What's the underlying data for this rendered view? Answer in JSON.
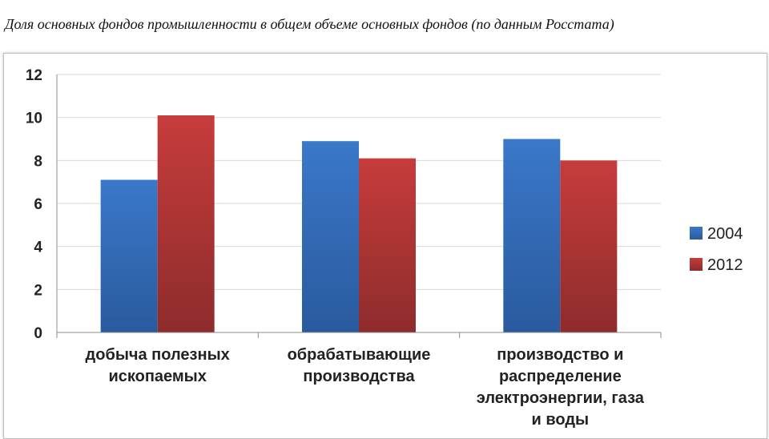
{
  "page": {
    "title": "Доля основных фондов промышленности в общем объеме основных фондов (по данным Росстата)"
  },
  "colors": {
    "series_2004": "#3a78c9",
    "series_2004_dark": "#2a5a9e",
    "series_2012": "#c73c3c",
    "series_2012_dark": "#8e2c2c",
    "grid": "#d9d9d9",
    "axis": "#8c8c8c"
  },
  "chart_data": {
    "type": "bar",
    "categories": [
      [
        "добыча полезных",
        "ископаемых"
      ],
      [
        "обрабатывающие",
        "производства"
      ],
      [
        "производство и",
        "распределение",
        "электроэнергии, газа",
        "и воды"
      ]
    ],
    "series": [
      {
        "name": "2004",
        "values": [
          7.1,
          8.9,
          9.0
        ]
      },
      {
        "name": "2012",
        "values": [
          10.1,
          8.1,
          8.0
        ]
      }
    ],
    "ylim": [
      0,
      12
    ],
    "yticks": [
      "0",
      "2",
      "4",
      "6",
      "8",
      "10",
      "12"
    ],
    "grid": true,
    "legend": "right"
  }
}
